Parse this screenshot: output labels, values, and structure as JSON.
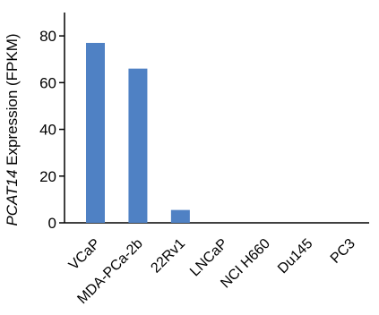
{
  "chart_data": {
    "type": "bar",
    "categories": [
      "VCaP",
      "MDA-PCa-2b",
      "22Rv1",
      "LNCaP",
      "NCI H660",
      "Du145",
      "PC3"
    ],
    "values": [
      77,
      66,
      5.5,
      0,
      0,
      0,
      0
    ],
    "title": "",
    "xlabel": "",
    "ylabel_gene": "PCAT14",
    "ylabel_rest": " Expression (FPKM)",
    "ylim": [
      0,
      90
    ],
    "yticks": [
      0,
      20,
      40,
      60,
      80
    ],
    "bar_color": "#4f81c4",
    "grid": false
  }
}
